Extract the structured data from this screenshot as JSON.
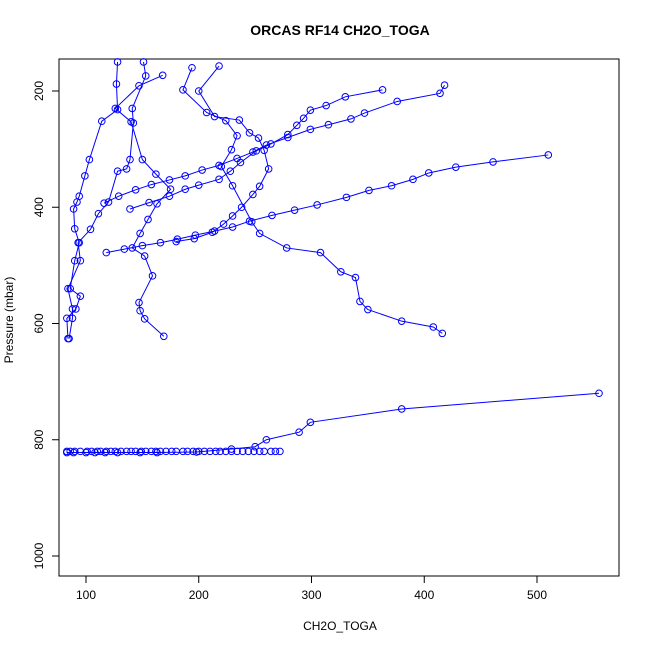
{
  "chart_data": {
    "type": "line",
    "title": "ORCAS RF14 CH2O_TOGA",
    "xlabel": "CH2O_TOGA",
    "ylabel": "Pressure (mbar)",
    "xlim": [
      43,
      560
    ],
    "ylim": [
      1030,
      150
    ],
    "y_reversed": true,
    "x_ticks": [
      100,
      200,
      300,
      400,
      500
    ],
    "y_ticks": [
      200,
      400,
      600,
      800,
      1000
    ],
    "grid": false,
    "colors": {
      "series": "#0000ff",
      "axis": "#000000"
    },
    "series": [
      {
        "x": [
          164,
          241,
          225,
          237,
          249,
          236,
          219,
          253,
          290,
          298,
          357,
          392,
          330,
          311,
          302,
          279,
          228,
          292,
          278,
          286,
          240,
          234,
          254,
          250,
          267,
          296,
          330,
          307,
          197,
          222,
          238,
          272,
          317,
          342,
          386,
          403,
          370,
          400,
          415,
          419
        ],
        "y": [
          145,
          150,
          165,
          190,
          197,
          217,
          232,
          243,
          255,
          274,
          300,
          345,
          385,
          428,
          445,
          498,
          513,
          528,
          538,
          548,
          553,
          554,
          558,
          565,
          572,
          578,
          590,
          606,
          611,
          625,
          632,
          652,
          680,
          701,
          723,
          746,
          753,
          760,
          769,
          776
        ],
        "x_dup": true
      }
    ],
    "segments": [
      [
        [
          153,
          150
        ],
        [
          150,
          174
        ],
        [
          148,
          230
        ],
        [
          143,
          241
        ],
        [
          140,
          255
        ],
        [
          138,
          301
        ],
        [
          138,
          316
        ]
      ],
      [
        [
          128,
          150
        ],
        [
          130,
          192
        ],
        [
          127,
          230
        ],
        [
          121,
          255
        ],
        [
          117,
          300
        ],
        [
          111,
          346
        ],
        [
          103,
          381
        ],
        [
          103,
          388
        ],
        [
          99,
          406
        ],
        [
          94,
          434
        ],
        [
          92,
          461
        ],
        [
          90,
          494
        ],
        [
          94,
          540
        ],
        [
          88,
          553
        ],
        [
          84,
          575
        ],
        [
          83,
          591
        ],
        [
          84,
          626
        ]
      ],
      [
        [
          146,
          160
        ],
        [
          174,
          191
        ],
        [
          197,
          233
        ],
        [
          225,
          226
        ],
        [
          241,
          232
        ],
        [
          234,
          252
        ],
        [
          227,
          278
        ],
        [
          214,
          287
        ],
        [
          211,
          316
        ],
        [
          226,
          318
        ],
        [
          236,
          363
        ],
        [
          256,
          445
        ],
        [
          267,
          471
        ],
        [
          276,
          494
        ],
        [
          320,
          520
        ],
        [
          330,
          512
        ],
        [
          336,
          521
        ],
        [
          324,
          540
        ],
        [
          346,
          562
        ],
        [
          349,
          576
        ],
        [
          381,
          592
        ],
        [
          379,
          604
        ],
        [
          407,
          607
        ],
        [
          421,
          618
        ]
      ],
      [
        [
          186,
          181
        ],
        [
          198,
          190
        ],
        [
          232,
          211
        ],
        [
          262,
          239
        ],
        [
          276,
          250
        ],
        [
          293,
          246
        ],
        [
          314,
          256
        ],
        [
          327,
          265
        ],
        [
          342,
          281
        ],
        [
          380,
          312
        ],
        [
          403,
          322
        ],
        [
          420,
          345
        ]
      ],
      [
        [
          318,
          180
        ],
        [
          330,
          191
        ],
        [
          346,
          204
        ],
        [
          355,
          201
        ],
        [
          372,
          204
        ],
        [
          391,
          206
        ],
        [
          404,
          213
        ],
        [
          416,
          236
        ],
        [
          420,
          250
        ]
      ],
      [
        [
          269,
          172
        ],
        [
          282,
          191
        ],
        [
          276,
          209
        ],
        [
          294,
          217
        ],
        [
          302,
          245
        ],
        [
          305,
          276
        ],
        [
          280,
          302
        ],
        [
          269,
          313
        ],
        [
          262,
          337
        ],
        [
          285,
          351
        ],
        [
          308,
          364
        ],
        [
          330,
          400
        ],
        [
          346,
          414
        ],
        [
          372,
          423
        ],
        [
          383,
          430
        ],
        [
          401,
          448
        ],
        [
          410,
          451
        ]
      ]
    ],
    "markers_only": [
      [
        85,
        460
      ],
      [
        88,
        475
      ],
      [
        94,
        497
      ],
      [
        100,
        533
      ],
      [
        108,
        548
      ],
      [
        116,
        557
      ],
      [
        131,
        563
      ],
      [
        143,
        590
      ],
      [
        152,
        578
      ],
      [
        170,
        558
      ],
      [
        187,
        528
      ],
      [
        178,
        500
      ],
      [
        196,
        488
      ],
      [
        206,
        468
      ],
      [
        216,
        458
      ],
      [
        228,
        452
      ],
      [
        238,
        440
      ],
      [
        252,
        426
      ],
      [
        263,
        420
      ],
      [
        275,
        408
      ]
    ],
    "point_series": {
      "x": [
        83,
        86,
        90,
        95,
        101,
        105,
        110,
        113,
        118,
        122,
        126,
        131,
        136,
        140,
        144,
        149,
        153,
        158,
        162,
        166,
        171,
        176,
        180,
        186,
        190,
        195,
        200,
        205,
        210,
        215,
        219,
        224,
        229,
        234,
        239,
        244,
        249,
        254,
        258,
        264,
        268,
        272
      ],
      "y": [
        820,
        820,
        820,
        820,
        820,
        820,
        820,
        820,
        820,
        820,
        820,
        820,
        820,
        820,
        820,
        820,
        820,
        820,
        820,
        820,
        820,
        820,
        820,
        820,
        820,
        820,
        820,
        820,
        820,
        820,
        820,
        820,
        820,
        820,
        820,
        820,
        820,
        820,
        820,
        820,
        820,
        820
      ]
    }
  }
}
